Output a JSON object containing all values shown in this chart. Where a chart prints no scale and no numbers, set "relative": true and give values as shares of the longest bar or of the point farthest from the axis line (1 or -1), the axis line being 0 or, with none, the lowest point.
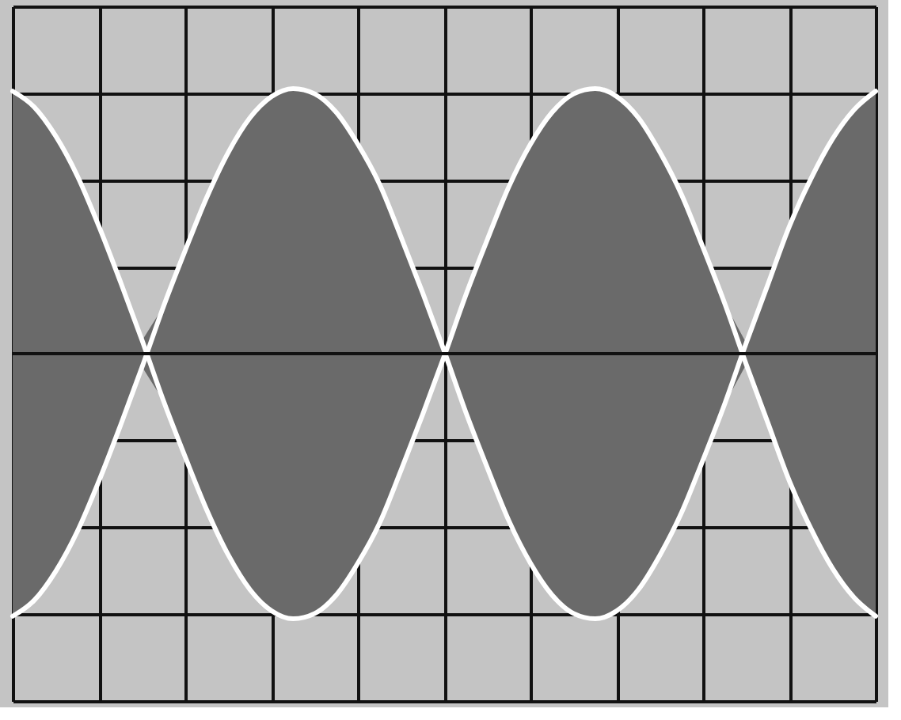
{
  "chart_data": {
    "type": "line",
    "relative": true,
    "grid": true,
    "tick_labels": false,
    "marker": "none",
    "line_style": "solid",
    "categories": [
      null,
      null,
      null,
      null,
      null,
      null,
      null,
      null,
      null,
      null,
      null,
      null,
      null,
      null,
      null,
      null,
      null,
      null,
      null,
      null,
      null,
      null,
      null,
      null,
      null,
      null,
      null,
      null,
      null,
      null,
      null,
      null,
      null,
      null,
      null,
      null,
      null,
      null,
      null,
      null,
      null
    ],
    "series": [
      {
        "color": "#ffffff",
        "values": [
          -0.99,
          -0.93,
          -0.82,
          -0.67,
          -0.48,
          -0.27,
          -0.05,
          0.18,
          0.39,
          0.59,
          0.76,
          0.89,
          0.97,
          1.0,
          0.98,
          0.91,
          0.79,
          0.64,
          0.44,
          0.23,
          0.01,
          -0.22,
          -0.43,
          -0.63,
          -0.79,
          -0.91,
          -0.98,
          -1.0,
          -0.97,
          -0.89,
          -0.76,
          -0.6,
          -0.4,
          -0.19,
          0.04,
          0.26,
          0.48,
          0.66,
          0.81,
          0.92,
          0.99
        ],
        "lower": [
          -0.99,
          -0.93,
          -0.82,
          -0.67,
          -0.48,
          -0.27,
          -0.05,
          -0.18,
          -0.39,
          -0.59,
          -0.76,
          -0.89,
          -0.97,
          -1.0,
          -0.98,
          -0.91,
          -0.79,
          -0.64,
          -0.44,
          -0.23,
          -0.01,
          -0.22,
          -0.43,
          -0.63,
          -0.79,
          -0.91,
          -0.98,
          -1.0,
          -0.97,
          -0.89,
          -0.76,
          -0.6,
          -0.4,
          -0.19,
          -0.04,
          -0.26,
          -0.48,
          -0.66,
          -0.81,
          -0.92,
          -0.99
        ],
        "upper": [
          0.99,
          0.93,
          0.82,
          0.67,
          0.48,
          0.27,
          0.05,
          0.18,
          0.39,
          0.59,
          0.76,
          0.89,
          0.97,
          1.0,
          0.98,
          0.91,
          0.79,
          0.64,
          0.44,
          0.23,
          0.01,
          0.22,
          0.43,
          0.63,
          0.79,
          0.91,
          0.98,
          1.0,
          0.97,
          0.89,
          0.76,
          0.6,
          0.4,
          0.19,
          0.04,
          0.26,
          0.48,
          0.66,
          0.81,
          0.92,
          0.99
        ]
      },
      {
        "color": "#ffffff",
        "values": [
          0.99,
          0.93,
          0.82,
          0.67,
          0.48,
          0.27,
          0.05,
          -0.18,
          -0.39,
          -0.59,
          -0.76,
          -0.89,
          -0.97,
          -1.0,
          -0.98,
          -0.91,
          -0.79,
          -0.64,
          -0.44,
          -0.23,
          -0.01,
          0.22,
          0.43,
          0.63,
          0.79,
          0.91,
          0.98,
          1.0,
          0.97,
          0.89,
          0.76,
          0.6,
          0.4,
          0.19,
          -0.04,
          -0.26,
          -0.48,
          -0.66,
          -0.81,
          -0.92,
          -0.99
        ]
      }
    ]
  }
}
